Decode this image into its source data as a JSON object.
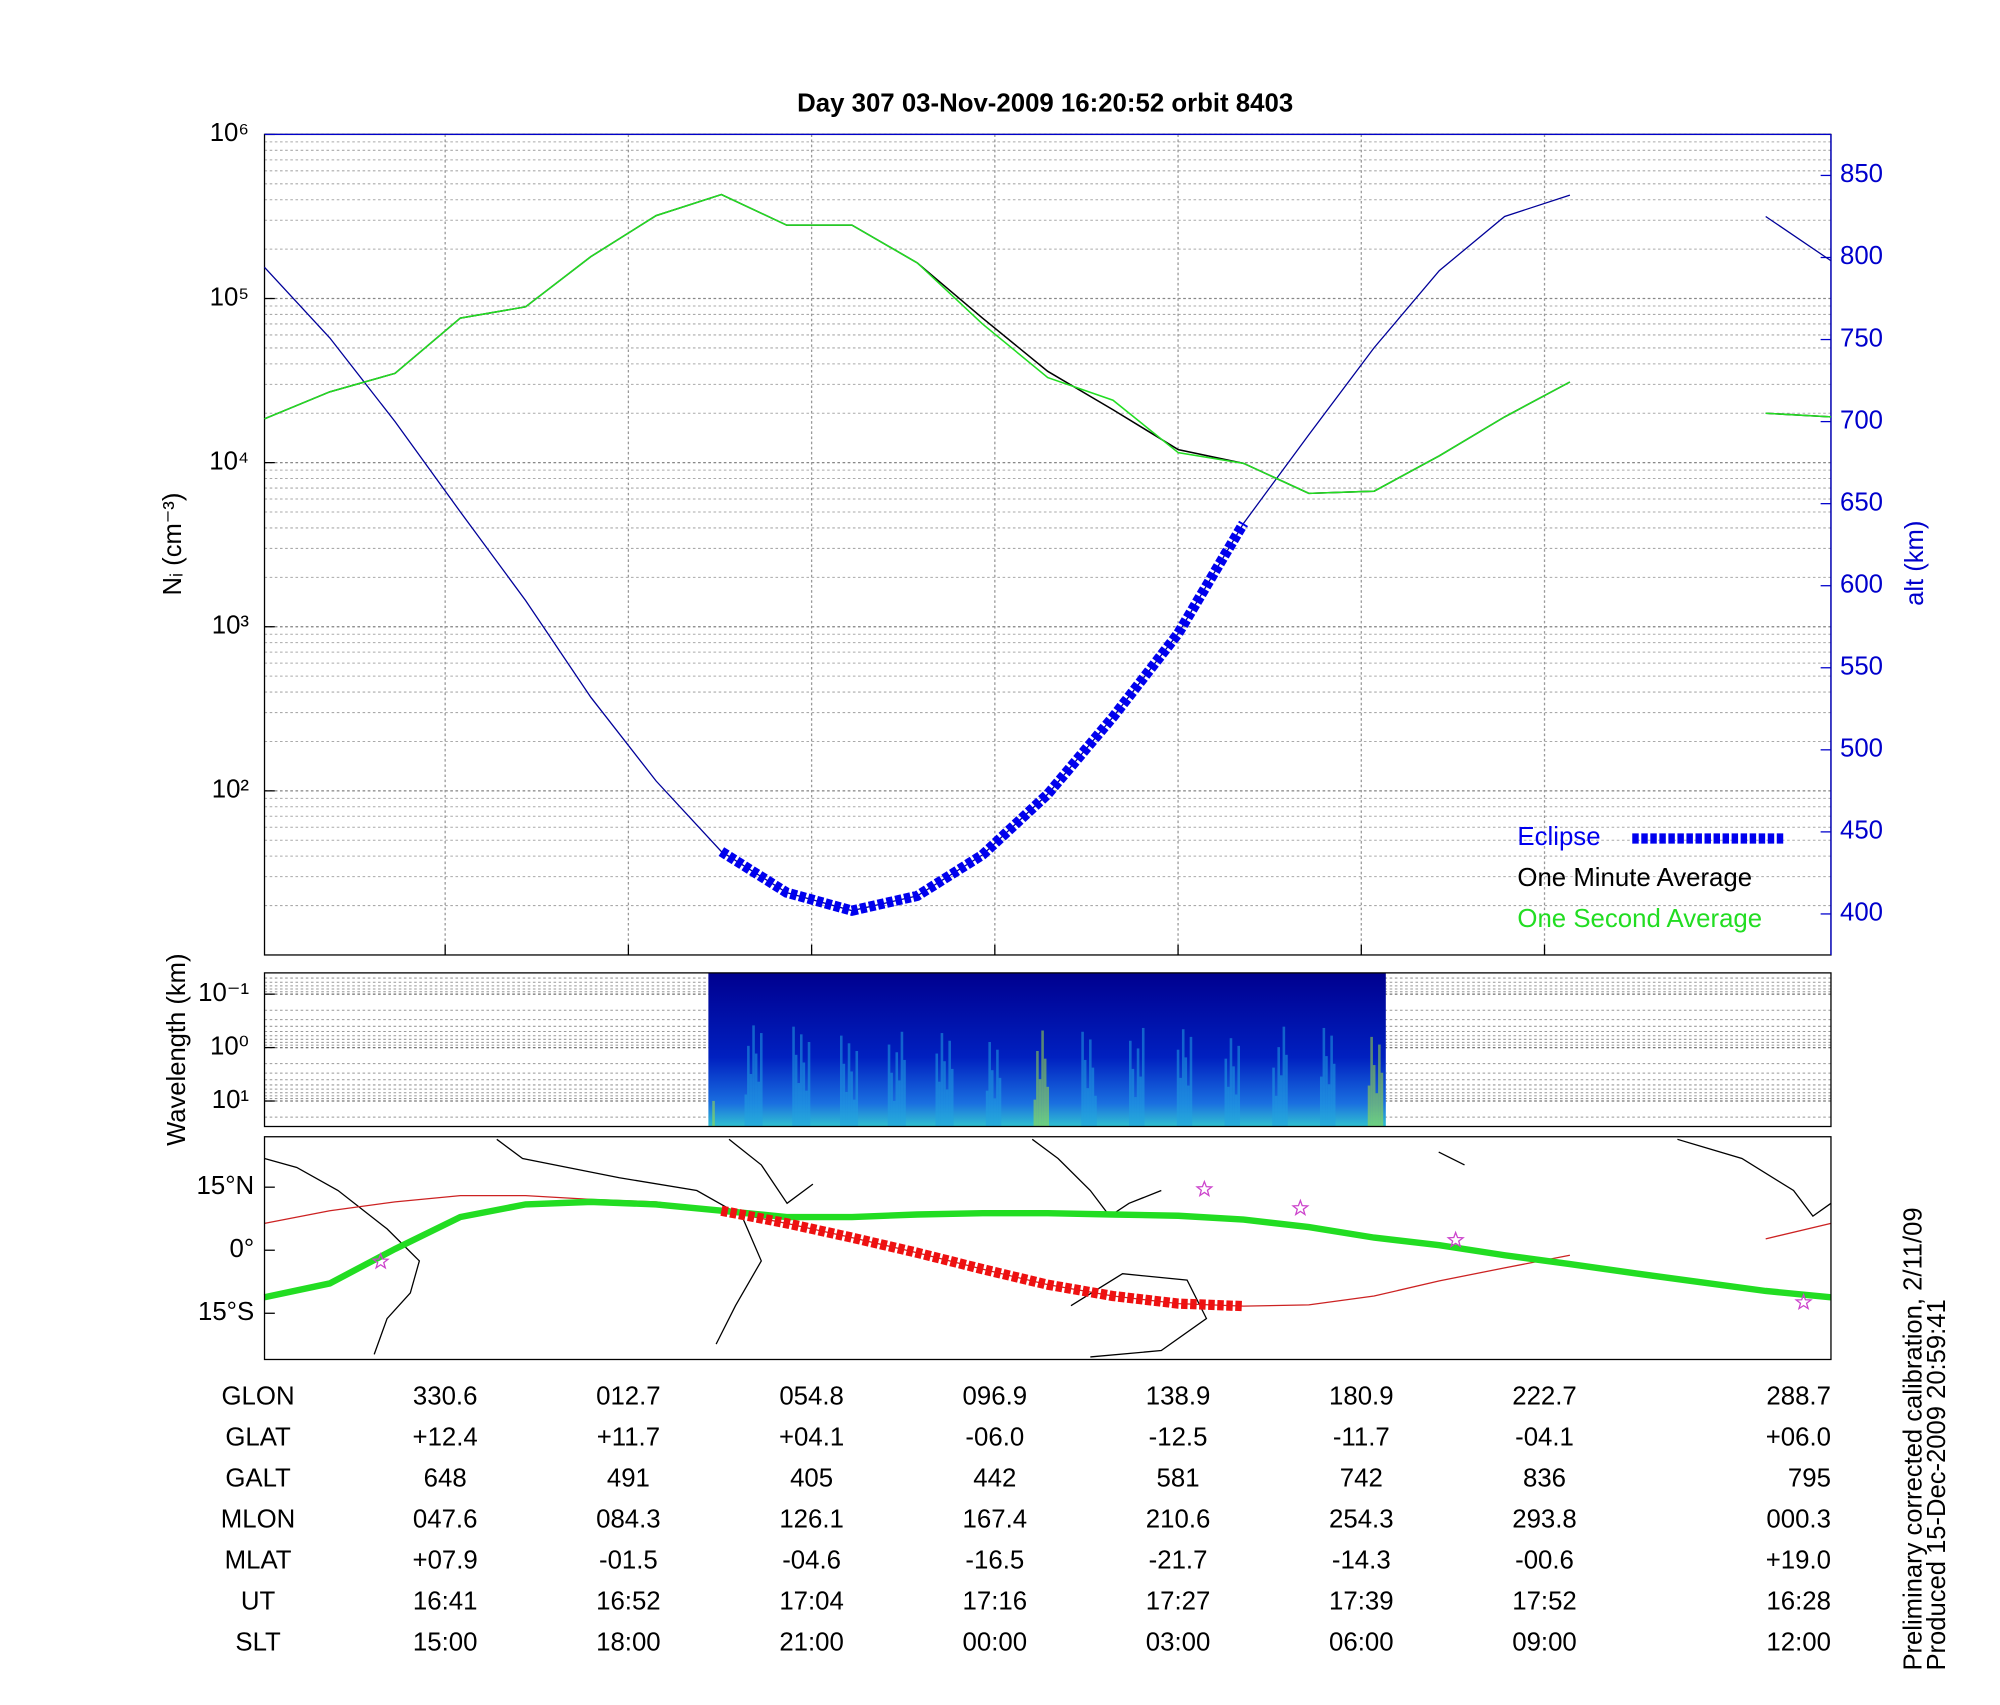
{
  "chart_data": [
    {
      "type": "line",
      "title": "Day 307  03-Nov-2009 16:20:52   orbit 8403",
      "ylabel": "Nᵢ (cm⁻³)",
      "y2label": "alt (km)",
      "y2color": "#0000cc",
      "yscale": "log",
      "ylim": [
        10,
        1000000
      ],
      "yticks": [
        {
          "value": 100,
          "label": "10²"
        },
        {
          "value": 1000,
          "label": "10³"
        },
        {
          "value": 10000,
          "label": "10⁴"
        },
        {
          "value": 100000,
          "label": "10⁵"
        },
        {
          "value": 1000000,
          "label": "10⁶"
        }
      ],
      "y2lim": [
        375,
        875
      ],
      "y2ticks": [
        400,
        450,
        500,
        550,
        600,
        650,
        700,
        750,
        800,
        850
      ],
      "grid": true,
      "legend": "lower right",
      "xlim": [
        0,
        24
      ],
      "x": [
        0,
        1,
        2,
        3,
        4,
        5,
        6,
        7,
        8,
        9,
        10,
        11,
        12,
        13,
        14,
        15,
        16,
        17,
        18,
        19,
        20,
        21,
        22,
        23,
        24
      ],
      "series": [
        {
          "axis": "y2",
          "color": "#000099",
          "linewidth": 1,
          "values": [
            794,
            751,
            700,
            645,
            591,
            532,
            481,
            438,
            413,
            402,
            411,
            436,
            473,
            520,
            571,
            638,
            692,
            745,
            792,
            825,
            838,
            null,
            null,
            825,
            798
          ]
        },
        {
          "name": "Eclipse",
          "axis": "y2",
          "color": "#0000ee",
          "linewidth": 8,
          "linestyle": "dotted",
          "values": [
            null,
            null,
            null,
            null,
            null,
            null,
            null,
            438,
            413,
            402,
            411,
            436,
            473,
            520,
            571,
            638,
            null,
            null,
            null,
            null,
            null,
            null,
            null,
            null,
            null
          ]
        },
        {
          "name": "One Minute Average",
          "axis": "y",
          "color": "#000000",
          "linewidth": 1.2,
          "values": [
            18500,
            27000,
            35000,
            76000,
            89000,
            180000,
            320000,
            430000,
            280000,
            280000,
            165000,
            76000,
            36000,
            21000,
            12000,
            9900,
            6500,
            6700,
            11000,
            19000,
            31000,
            null,
            null,
            20000,
            19000
          ]
        },
        {
          "name": "One Second Average",
          "axis": "y",
          "color": "#22dd22",
          "linewidth": 1.2,
          "values": [
            18500,
            27000,
            35000,
            76000,
            89000,
            180000,
            320000,
            430000,
            280000,
            280000,
            165000,
            70000,
            33000,
            24000,
            11500,
            9900,
            6500,
            6700,
            11000,
            19000,
            31000,
            null,
            null,
            20000,
            19000
          ]
        }
      ]
    },
    {
      "type": "spectrogram",
      "ylabel": "Wavelength (km)",
      "yscale": "log",
      "y_reversed": true,
      "ylim": [
        0.04,
        30
      ],
      "yticks": [
        {
          "value": 0.1,
          "label": "10⁻¹"
        },
        {
          "value": 1,
          "label": "10⁰"
        },
        {
          "value": 10,
          "label": "10¹"
        }
      ],
      "grid": true
    },
    {
      "type": "map",
      "ylim": [
        -26,
        27
      ],
      "yticks": [
        {
          "value": 15,
          "label": "15°N"
        },
        {
          "value": 0,
          "label": "0°"
        },
        {
          "value": -15,
          "label": "15°S"
        }
      ],
      "xlim": [
        0,
        24
      ],
      "x": [
        0,
        1,
        2,
        3,
        4,
        5,
        6,
        7,
        8,
        9,
        10,
        11,
        12,
        13,
        14,
        15,
        16,
        17,
        18,
        19,
        20,
        21,
        22,
        23,
        24
      ],
      "series": [
        {
          "color": "#cc2222",
          "linewidth": 1,
          "values": [
            6.4,
            9.4,
            11.5,
            13.0,
            13.0,
            12.1,
            11.5,
            9.4,
            6.4,
            3.0,
            -0.6,
            -4.5,
            -8.2,
            -10.9,
            -12.7,
            -13.3,
            -13.0,
            -10.9,
            -7.3,
            -4.2,
            -1.2,
            null,
            null,
            2.7,
            6.4
          ]
        },
        {
          "color": "#22dd22",
          "linewidth": 5,
          "values": [
            -11.2,
            -7.9,
            0.3,
            7.9,
            10.9,
            11.5,
            10.9,
            9.4,
            7.9,
            7.9,
            8.5,
            8.8,
            8.8,
            8.5,
            8.2,
            7.3,
            5.5,
            3.0,
            1.2,
            -1.2,
            -3.3,
            -5.5,
            -7.6,
            -9.7,
            -11.2
          ]
        },
        {
          "color": "#ee1111",
          "linewidth": 8,
          "linestyle": "dotted",
          "values": [
            null,
            null,
            null,
            null,
            null,
            null,
            null,
            9.4,
            6.4,
            3.0,
            -0.6,
            -4.5,
            -8.2,
            -10.9,
            -12.7,
            -13.3,
            null,
            null,
            null,
            null,
            null,
            null,
            null,
            null,
            null
          ]
        },
        {
          "color": "#cc44cc",
          "marker": "star",
          "x": [
            1.78,
            14.4,
            15.87,
            18.25,
            23.58
          ],
          "values": [
            -2.7,
            14.5,
            10.0,
            2.4,
            -12.4
          ]
        }
      ]
    }
  ],
  "orbit_table": {
    "rows": [
      {
        "label": "GLON",
        "values": [
          "330.6",
          "012.7",
          "054.8",
          "096.9",
          "138.9",
          "180.9",
          "222.7",
          "288.7"
        ]
      },
      {
        "label": "GLAT",
        "values": [
          "+12.4",
          "+11.7",
          "+04.1",
          "-06.0",
          "-12.5",
          "-11.7",
          "-04.1",
          "+06.0"
        ]
      },
      {
        "label": "GALT",
        "values": [
          "648",
          "491",
          "405",
          "442",
          "581",
          "742",
          "836",
          "795"
        ]
      },
      {
        "label": "MLON",
        "values": [
          "047.6",
          "084.3",
          "126.1",
          "167.4",
          "210.6",
          "254.3",
          "293.8",
          "000.3"
        ]
      },
      {
        "label": "MLAT",
        "values": [
          "+07.9",
          "-01.5",
          "-04.6",
          "-16.5",
          "-21.7",
          "-14.3",
          "-00.6",
          "+19.0"
        ]
      },
      {
        "label": "UT",
        "values": [
          "16:41",
          "16:52",
          "17:04",
          "17:16",
          "17:27",
          "17:39",
          "17:52",
          "16:28"
        ]
      },
      {
        "label": "SLT",
        "values": [
          "15:00",
          "18:00",
          "21:00",
          "00:00",
          "03:00",
          "06:00",
          "09:00",
          "12:00"
        ]
      }
    ]
  },
  "footnote": [
    "Preliminary corrected calibration, 2/11/09",
    "Produced 15-Dec-2009 20:59:41"
  ]
}
